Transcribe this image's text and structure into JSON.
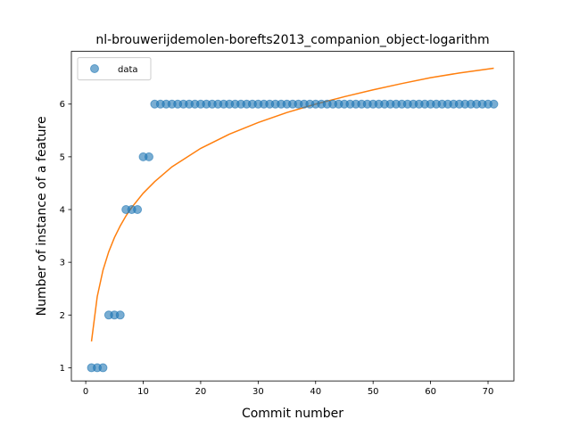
{
  "chart_data": {
    "type": "scatter",
    "title": "nl-brouwerijdemolen-borefts2013_companion_object-logarithm",
    "xlabel": "Commit number",
    "ylabel": "Number of instance of a feature",
    "xlim": [
      -2.5,
      74.5
    ],
    "ylim": [
      0.75,
      7.0
    ],
    "xticks": [
      0,
      10,
      20,
      30,
      40,
      50,
      60,
      70
    ],
    "yticks": [
      1,
      2,
      3,
      4,
      5,
      6
    ],
    "grid": false,
    "legend": {
      "position": "top-left",
      "entries": [
        "data"
      ]
    },
    "series": [
      {
        "name": "data",
        "kind": "scatter",
        "color": "#1f77b4",
        "x": [
          1,
          2,
          3,
          4,
          5,
          6,
          7,
          8,
          9,
          10,
          11,
          12,
          13,
          14,
          15,
          16,
          17,
          18,
          19,
          20,
          21,
          22,
          23,
          24,
          25,
          26,
          27,
          28,
          29,
          30,
          31,
          32,
          33,
          34,
          35,
          36,
          37,
          38,
          39,
          40,
          41,
          42,
          43,
          44,
          45,
          46,
          47,
          48,
          49,
          50,
          51,
          52,
          53,
          54,
          55,
          56,
          57,
          58,
          59,
          60,
          61,
          62,
          63,
          64,
          65,
          66,
          67,
          68,
          69,
          70,
          71
        ],
        "y": [
          1,
          1,
          1,
          2,
          2,
          2,
          4,
          4,
          4,
          5,
          5,
          6,
          6,
          6,
          6,
          6,
          6,
          6,
          6,
          6,
          6,
          6,
          6,
          6,
          6,
          6,
          6,
          6,
          6,
          6,
          6,
          6,
          6,
          6,
          6,
          6,
          6,
          6,
          6,
          6,
          6,
          6,
          6,
          6,
          6,
          6,
          6,
          6,
          6,
          6,
          6,
          6,
          6,
          6,
          6,
          6,
          6,
          6,
          6,
          6,
          6,
          6,
          6,
          6,
          6,
          6,
          6,
          6,
          6,
          6,
          6
        ]
      },
      {
        "kind": "line",
        "color": "#ff7f0e",
        "x": [
          1,
          2,
          3,
          4,
          5,
          6,
          7,
          8,
          10,
          12,
          15,
          20,
          25,
          30,
          35,
          40,
          45,
          50,
          55,
          60,
          65,
          71
        ],
        "y": [
          1.5,
          2.35,
          2.85,
          3.2,
          3.47,
          3.69,
          3.88,
          4.04,
          4.31,
          4.53,
          4.81,
          5.16,
          5.43,
          5.65,
          5.84,
          6.0,
          6.14,
          6.27,
          6.39,
          6.5,
          6.59,
          6.68
        ]
      }
    ]
  }
}
